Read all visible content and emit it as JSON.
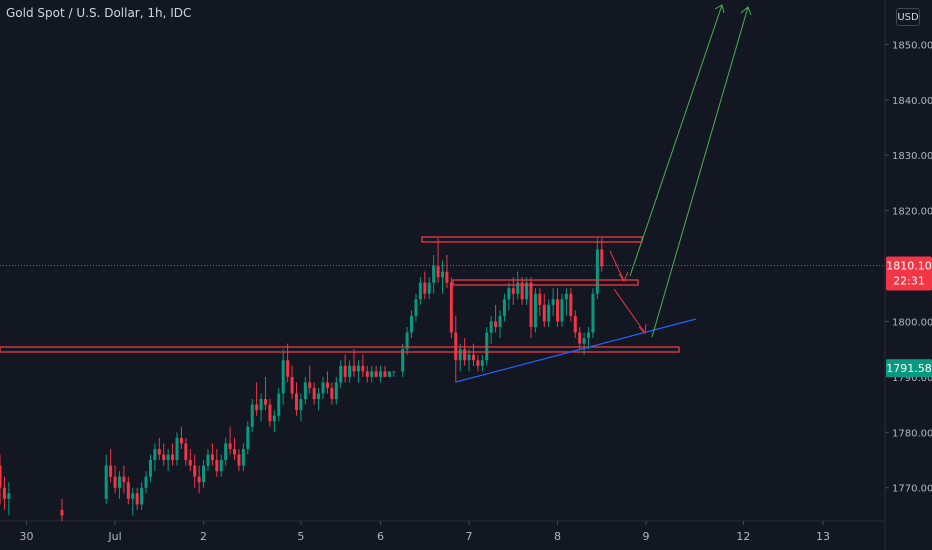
{
  "header": {
    "title": "Gold Spot / U.S. Dollar, 1h, IDC"
  },
  "currency_button": {
    "label": "USD"
  },
  "price_tags": {
    "last": {
      "price": "1810.10",
      "countdown": "22:31",
      "value": 1810.1,
      "color": "#f23645"
    },
    "prev": {
      "price": "1791.58",
      "value": 1791.58,
      "color": "#089981"
    }
  },
  "chart_data": {
    "type": "candlestick",
    "y_ticks": [
      {
        "value": 1770,
        "label": "1770.00"
      },
      {
        "value": 1780,
        "label": "1780.00"
      },
      {
        "value": 1790,
        "label": "1790.00"
      },
      {
        "value": 1800,
        "label": "1800.00"
      },
      {
        "value": 1810,
        "label": "1810.00"
      },
      {
        "value": 1820,
        "label": "1820.00"
      },
      {
        "value": 1830,
        "label": "1830.00"
      },
      {
        "value": 1840,
        "label": "1840.00"
      },
      {
        "value": 1850,
        "label": "1850.00"
      }
    ],
    "x_ticks": [
      {
        "t": 0.3,
        "label": "30"
      },
      {
        "t": 1.3,
        "label": "Jul"
      },
      {
        "t": 2.3,
        "label": "2"
      },
      {
        "t": 3.4,
        "label": "5"
      },
      {
        "t": 4.3,
        "label": "6"
      },
      {
        "t": 5.3,
        "label": "7"
      },
      {
        "t": 6.3,
        "label": "8"
      },
      {
        "t": 7.3,
        "label": "9"
      },
      {
        "t": 8.4,
        "label": "12"
      },
      {
        "t": 9.3,
        "label": "13"
      }
    ],
    "ylim": [
      1764,
      1858
    ],
    "xlim": [
      0,
      10
    ],
    "grid": false,
    "colors": {
      "up": "#089981",
      "down": "#f23645"
    },
    "candles": [
      [
        0.0,
        1774,
        1776,
        1767,
        1770
      ],
      [
        0.05,
        1770,
        1772,
        1766,
        1768
      ],
      [
        0.1,
        1768,
        1771,
        1765,
        1769
      ],
      [
        0.7,
        1766,
        1768,
        1764,
        1765
      ],
      [
        1.2,
        1768,
        1776,
        1767,
        1774
      ],
      [
        1.25,
        1774,
        1777,
        1771,
        1772
      ],
      [
        1.3,
        1772,
        1774,
        1769,
        1770
      ],
      [
        1.35,
        1770,
        1773,
        1768,
        1772
      ],
      [
        1.4,
        1772,
        1774,
        1769,
        1771
      ],
      [
        1.45,
        1771,
        1772,
        1767,
        1768
      ],
      [
        1.5,
        1768,
        1770,
        1765,
        1769
      ],
      [
        1.55,
        1769,
        1770,
        1766,
        1767
      ],
      [
        1.6,
        1767,
        1771,
        1766,
        1770
      ],
      [
        1.65,
        1770,
        1773,
        1769,
        1772
      ],
      [
        1.7,
        1772,
        1776,
        1771,
        1775
      ],
      [
        1.75,
        1775,
        1778,
        1773,
        1777
      ],
      [
        1.8,
        1777,
        1779,
        1775,
        1776
      ],
      [
        1.85,
        1776,
        1778,
        1774,
        1775
      ],
      [
        1.9,
        1775,
        1777,
        1773,
        1776
      ],
      [
        1.95,
        1776,
        1778,
        1774,
        1775
      ],
      [
        2.0,
        1775,
        1780,
        1774,
        1779
      ],
      [
        2.05,
        1779,
        1781,
        1777,
        1778
      ],
      [
        2.1,
        1778,
        1779,
        1774,
        1775
      ],
      [
        2.15,
        1775,
        1777,
        1773,
        1774
      ],
      [
        2.2,
        1774,
        1776,
        1770,
        1772
      ],
      [
        2.25,
        1772,
        1774,
        1769,
        1771
      ],
      [
        2.3,
        1771,
        1775,
        1770,
        1774
      ],
      [
        2.35,
        1774,
        1777,
        1773,
        1776
      ],
      [
        2.4,
        1776,
        1778,
        1774,
        1775
      ],
      [
        2.45,
        1775,
        1777,
        1772,
        1773
      ],
      [
        2.5,
        1773,
        1776,
        1772,
        1775
      ],
      [
        2.55,
        1775,
        1779,
        1774,
        1778
      ],
      [
        2.6,
        1778,
        1781,
        1776,
        1777
      ],
      [
        2.65,
        1777,
        1779,
        1775,
        1776
      ],
      [
        2.7,
        1776,
        1777,
        1773,
        1774
      ],
      [
        2.75,
        1774,
        1778,
        1773,
        1777
      ],
      [
        2.8,
        1777,
        1782,
        1776,
        1781
      ],
      [
        2.85,
        1781,
        1786,
        1780,
        1785
      ],
      [
        2.9,
        1785,
        1789,
        1783,
        1784
      ],
      [
        2.95,
        1784,
        1787,
        1782,
        1786
      ],
      [
        3.0,
        1786,
        1790,
        1784,
        1785
      ],
      [
        3.05,
        1785,
        1786,
        1781,
        1782
      ],
      [
        3.1,
        1782,
        1784,
        1780,
        1783
      ],
      [
        3.15,
        1783,
        1788,
        1782,
        1787
      ],
      [
        3.2,
        1787,
        1795,
        1785,
        1793
      ],
      [
        3.25,
        1793,
        1796,
        1789,
        1790
      ],
      [
        3.3,
        1790,
        1792,
        1786,
        1787
      ],
      [
        3.35,
        1787,
        1789,
        1783,
        1784
      ],
      [
        3.4,
        1784,
        1787,
        1782,
        1786
      ],
      [
        3.45,
        1786,
        1790,
        1785,
        1789
      ],
      [
        3.5,
        1789,
        1792,
        1787,
        1788
      ],
      [
        3.55,
        1788,
        1789,
        1785,
        1786
      ],
      [
        3.6,
        1786,
        1788,
        1784,
        1787
      ],
      [
        3.65,
        1787,
        1790,
        1786,
        1789
      ],
      [
        3.7,
        1789,
        1791,
        1787,
        1788
      ],
      [
        3.75,
        1788,
        1789,
        1785,
        1786
      ],
      [
        3.8,
        1786,
        1790,
        1785,
        1789
      ],
      [
        3.85,
        1789,
        1793,
        1788,
        1792
      ],
      [
        3.9,
        1792,
        1794,
        1789,
        1790
      ],
      [
        3.95,
        1790,
        1793,
        1789,
        1792
      ],
      [
        4.0,
        1792,
        1795,
        1790,
        1791
      ],
      [
        4.05,
        1791,
        1793,
        1789,
        1792
      ],
      [
        4.1,
        1792,
        1794,
        1790,
        1791
      ],
      [
        4.15,
        1791,
        1792,
        1789,
        1790
      ],
      [
        4.2,
        1790,
        1792,
        1789,
        1791
      ],
      [
        4.25,
        1791,
        1792,
        1790,
        1790
      ],
      [
        4.3,
        1790,
        1792,
        1789,
        1791
      ],
      [
        4.35,
        1791,
        1792,
        1790,
        1790
      ],
      [
        4.4,
        1790,
        1791,
        1790,
        1791
      ],
      [
        4.45,
        1791,
        1791,
        1790,
        1791
      ],
      [
        4.55,
        1791,
        1796,
        1790,
        1795
      ],
      [
        4.6,
        1795,
        1799,
        1794,
        1798
      ],
      [
        4.65,
        1798,
        1802,
        1797,
        1801
      ],
      [
        4.7,
        1801,
        1805,
        1800,
        1804
      ],
      [
        4.75,
        1804,
        1808,
        1803,
        1807
      ],
      [
        4.8,
        1807,
        1809,
        1804,
        1805
      ],
      [
        4.85,
        1805,
        1808,
        1804,
        1807
      ],
      [
        4.9,
        1807,
        1812,
        1805,
        1810
      ],
      [
        4.95,
        1810,
        1815,
        1807,
        1808
      ],
      [
        5.0,
        1808,
        1811,
        1805,
        1809
      ],
      [
        5.05,
        1809,
        1812,
        1806,
        1807
      ],
      [
        5.1,
        1807,
        1808,
        1797,
        1798
      ],
      [
        5.15,
        1798,
        1801,
        1789,
        1793
      ],
      [
        5.2,
        1793,
        1796,
        1791,
        1795
      ],
      [
        5.25,
        1795,
        1797,
        1792,
        1793
      ],
      [
        5.3,
        1793,
        1795,
        1791,
        1794
      ],
      [
        5.35,
        1794,
        1796,
        1792,
        1793
      ],
      [
        5.4,
        1793,
        1794,
        1791,
        1792
      ],
      [
        5.45,
        1792,
        1794,
        1791,
        1793
      ],
      [
        5.5,
        1793,
        1799,
        1792,
        1798
      ],
      [
        5.55,
        1798,
        1801,
        1796,
        1800
      ],
      [
        5.6,
        1800,
        1803,
        1798,
        1799
      ],
      [
        5.65,
        1799,
        1802,
        1797,
        1801
      ],
      [
        5.7,
        1801,
        1805,
        1800,
        1804
      ],
      [
        5.75,
        1804,
        1807,
        1802,
        1806
      ],
      [
        5.8,
        1806,
        1808,
        1803,
        1805
      ],
      [
        5.85,
        1805,
        1809,
        1804,
        1807
      ],
      [
        5.9,
        1807,
        1808,
        1803,
        1804
      ],
      [
        5.95,
        1804,
        1808,
        1803,
        1807
      ],
      [
        6.0,
        1807,
        1808,
        1797,
        1799
      ],
      [
        6.05,
        1799,
        1806,
        1798,
        1805
      ],
      [
        6.1,
        1805,
        1806,
        1801,
        1803
      ],
      [
        6.15,
        1803,
        1805,
        1799,
        1800
      ],
      [
        6.2,
        1800,
        1804,
        1799,
        1803
      ],
      [
        6.25,
        1803,
        1806,
        1801,
        1804
      ],
      [
        6.3,
        1804,
        1806,
        1799,
        1800
      ],
      [
        6.35,
        1800,
        1805,
        1799,
        1804
      ],
      [
        6.4,
        1804,
        1806,
        1801,
        1805
      ],
      [
        6.45,
        1805,
        1806,
        1800,
        1801
      ],
      [
        6.5,
        1801,
        1802,
        1797,
        1798
      ],
      [
        6.55,
        1798,
        1799,
        1795,
        1796
      ],
      [
        6.6,
        1796,
        1798,
        1794,
        1797
      ],
      [
        6.65,
        1797,
        1799,
        1795,
        1798
      ],
      [
        6.7,
        1798,
        1806,
        1797,
        1805
      ],
      [
        6.75,
        1805,
        1815,
        1804,
        1813
      ],
      [
        6.8,
        1813,
        1815,
        1809,
        1810
      ]
    ]
  }
}
